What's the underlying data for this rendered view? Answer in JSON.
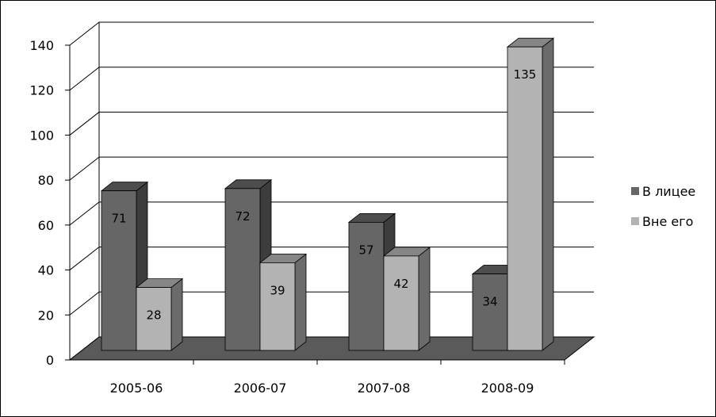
{
  "chart_data": {
    "type": "bar",
    "style": "3d-clustered-column",
    "categories": [
      "2005-06",
      "2006-07",
      "2007-08",
      "2008-09"
    ],
    "series": [
      {
        "name": "В лицее",
        "values": [
          71,
          72,
          57,
          34
        ],
        "color": "#666666"
      },
      {
        "name": "Вне его",
        "values": [
          28,
          39,
          42,
          135
        ],
        "color": "#b3b3b3"
      }
    ],
    "title": "",
    "xlabel": "",
    "ylabel": "",
    "ylim": [
      0,
      140
    ],
    "yticks": [
      0,
      20,
      40,
      60,
      80,
      100,
      120,
      140
    ],
    "data_labels": true,
    "grid": true,
    "legend_position": "right"
  }
}
